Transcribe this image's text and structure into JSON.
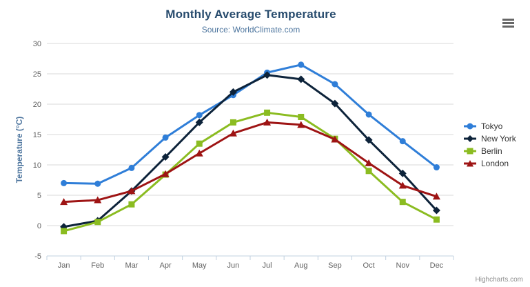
{
  "chart": {
    "credits": "Highcharts.com",
    "export_menu_icon": "hamburger-menu-icon"
  },
  "chart_data": {
    "type": "line",
    "title": "Monthly Average Temperature",
    "subtitle": "Source: WorldClimate.com",
    "categories": [
      "Jan",
      "Feb",
      "Mar",
      "Apr",
      "May",
      "Jun",
      "Jul",
      "Aug",
      "Sep",
      "Oct",
      "Nov",
      "Dec"
    ],
    "series": [
      {
        "name": "Tokyo",
        "color": "#2f7ed8",
        "marker": "circle",
        "values": [
          7.0,
          6.9,
          9.5,
          14.5,
          18.2,
          21.5,
          25.2,
          26.5,
          23.3,
          18.3,
          13.9,
          9.6
        ]
      },
      {
        "name": "New York",
        "color": "#0d233a",
        "marker": "diamond",
        "values": [
          -0.2,
          0.8,
          5.7,
          11.3,
          17.0,
          22.0,
          24.8,
          24.1,
          20.1,
          14.1,
          8.6,
          2.5
        ]
      },
      {
        "name": "Berlin",
        "color": "#8bbc21",
        "marker": "square",
        "values": [
          -0.9,
          0.6,
          3.5,
          8.4,
          13.5,
          17.0,
          18.6,
          17.9,
          14.3,
          9.0,
          3.9,
          1.0
        ]
      },
      {
        "name": "London",
        "color": "#9e1414",
        "marker": "triangle",
        "values": [
          3.9,
          4.2,
          5.7,
          8.5,
          11.9,
          15.2,
          17.0,
          16.6,
          14.2,
          10.3,
          6.6,
          4.8
        ]
      }
    ],
    "xlabel": "",
    "ylabel": "Temperature (°C)",
    "ylim": [
      -5,
      30
    ],
    "ytick_interval": 5,
    "grid": true,
    "legend_position": "right"
  },
  "colors": {
    "title": "#274b6d",
    "subtitle": "#4d759e",
    "axis_title": "#4d759e",
    "axis_label": "#606060",
    "grid_line": "#d8d8d8",
    "axis_line": "#c0d0e0",
    "legend_text": "#333333",
    "credits": "#909090"
  }
}
